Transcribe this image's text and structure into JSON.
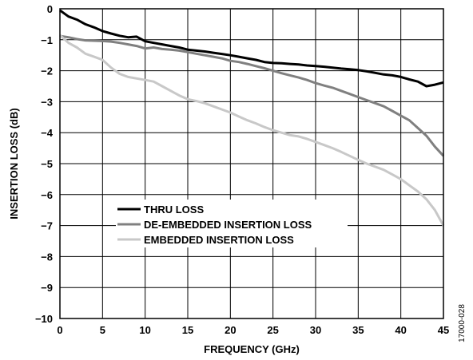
{
  "figure_code": "17000-028",
  "chart_data": {
    "type": "line",
    "xlabel": "FREQUENCY (GHz)",
    "ylabel": "INSERTION LOSS (dB)",
    "xlim": [
      0,
      45
    ],
    "ylim": [
      -10,
      0
    ],
    "x_ticks": [
      "0",
      "5",
      "10",
      "15",
      "20",
      "25",
      "30",
      "35",
      "40",
      "45"
    ],
    "y_ticks": [
      "0",
      "−1",
      "−2",
      "−3",
      "−4",
      "−5",
      "−6",
      "−7",
      "−8",
      "−9",
      "−10"
    ],
    "grid": true,
    "legend_position": "lower-left",
    "series": [
      {
        "name": "THRU LOSS",
        "color": "#000000",
        "x": [
          0,
          1,
          2,
          3,
          4,
          5,
          6,
          7,
          8,
          9,
          10,
          11,
          12,
          13,
          14,
          15,
          16,
          17,
          18,
          19,
          20,
          21,
          22,
          23,
          24,
          25,
          26,
          27,
          28,
          29,
          30,
          31,
          32,
          33,
          34,
          35,
          36,
          37,
          38,
          39,
          40,
          41,
          42,
          43,
          44,
          45
        ],
        "y": [
          -0.05,
          -0.25,
          -0.35,
          -0.5,
          -0.6,
          -0.72,
          -0.8,
          -0.87,
          -0.92,
          -0.9,
          -1.05,
          -1.1,
          -1.15,
          -1.2,
          -1.25,
          -1.32,
          -1.35,
          -1.38,
          -1.42,
          -1.46,
          -1.5,
          -1.55,
          -1.6,
          -1.65,
          -1.72,
          -1.75,
          -1.76,
          -1.78,
          -1.8,
          -1.83,
          -1.85,
          -1.87,
          -1.9,
          -1.93,
          -1.95,
          -1.98,
          -2.02,
          -2.07,
          -2.12,
          -2.15,
          -2.2,
          -2.28,
          -2.35,
          -2.5,
          -2.45,
          -2.38
        ]
      },
      {
        "name": "DE-EMBEDDED INSERTION LOSS",
        "color": "#808080",
        "x": [
          0,
          1,
          2,
          3,
          4,
          5,
          6,
          7,
          8,
          9,
          10,
          11,
          12,
          13,
          14,
          15,
          16,
          17,
          18,
          19,
          20,
          21,
          22,
          23,
          24,
          25,
          26,
          27,
          28,
          29,
          30,
          31,
          32,
          33,
          34,
          35,
          36,
          37,
          38,
          39,
          40,
          41,
          42,
          43,
          44,
          45
        ],
        "y": [
          -0.88,
          -0.92,
          -0.98,
          -1.02,
          -1.03,
          -1.04,
          -1.06,
          -1.1,
          -1.15,
          -1.2,
          -1.28,
          -1.25,
          -1.3,
          -1.32,
          -1.35,
          -1.4,
          -1.45,
          -1.5,
          -1.55,
          -1.6,
          -1.68,
          -1.72,
          -1.78,
          -1.85,
          -1.92,
          -2.0,
          -2.08,
          -2.15,
          -2.22,
          -2.3,
          -2.4,
          -2.48,
          -2.55,
          -2.65,
          -2.75,
          -2.85,
          -2.95,
          -3.05,
          -3.15,
          -3.3,
          -3.45,
          -3.6,
          -3.85,
          -4.1,
          -4.45,
          -4.75
        ]
      },
      {
        "name": "EMBEDDED INSERTION LOSS",
        "color": "#c8c8c8",
        "x": [
          0,
          1,
          2,
          3,
          4,
          5,
          6,
          7,
          8,
          9,
          10,
          11,
          12,
          13,
          14,
          15,
          16,
          17,
          18,
          19,
          20,
          21,
          22,
          23,
          24,
          25,
          26,
          27,
          28,
          29,
          30,
          31,
          32,
          33,
          34,
          35,
          36,
          37,
          38,
          39,
          40,
          41,
          42,
          43,
          44,
          45
        ],
        "y": [
          -0.85,
          -1.1,
          -1.25,
          -1.45,
          -1.55,
          -1.65,
          -1.9,
          -2.1,
          -2.2,
          -2.25,
          -2.3,
          -2.35,
          -2.5,
          -2.65,
          -2.8,
          -2.92,
          -2.98,
          -3.05,
          -3.15,
          -3.25,
          -3.35,
          -3.48,
          -3.6,
          -3.7,
          -3.82,
          -3.92,
          -4.0,
          -4.08,
          -4.12,
          -4.2,
          -4.3,
          -4.4,
          -4.5,
          -4.62,
          -4.75,
          -4.88,
          -5.0,
          -5.1,
          -5.2,
          -5.35,
          -5.5,
          -5.7,
          -5.9,
          -6.15,
          -6.5,
          -7.0
        ]
      }
    ]
  }
}
